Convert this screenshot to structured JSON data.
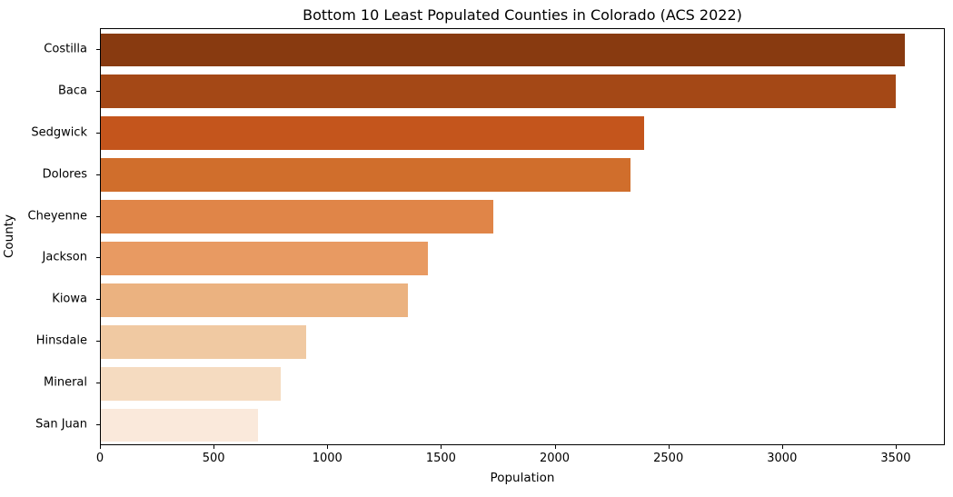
{
  "chart_data": {
    "type": "bar",
    "orientation": "horizontal",
    "title": "Bottom 10 Least Populated Counties in Colorado (ACS 2022)",
    "xlabel": "Population",
    "ylabel": "County",
    "categories": [
      "Costilla",
      "Baca",
      "Sedgwick",
      "Dolores",
      "Cheyenne",
      "Jackson",
      "Kiowa",
      "Hinsdale",
      "Mineral",
      "San Juan"
    ],
    "values": [
      3535,
      3495,
      2390,
      2330,
      1725,
      1440,
      1350,
      905,
      790,
      690
    ],
    "bar_colors": [
      "#883a10",
      "#a44816",
      "#c4551c",
      "#d06e2c",
      "#e08548",
      "#e89a62",
      "#ebb280",
      "#f0c9a2",
      "#f5dbc0",
      "#fae9db"
    ],
    "xlim": [
      0,
      3716
    ],
    "xticks": [
      0,
      500,
      1000,
      1500,
      2000,
      2500,
      3000,
      3500
    ],
    "grid": false,
    "legend": null,
    "colormap": "Oranges reversed (dark = most populated of bottom 10)",
    "spine_color": "#000000",
    "text_color": "#000000",
    "background_color": "#ffffff"
  }
}
